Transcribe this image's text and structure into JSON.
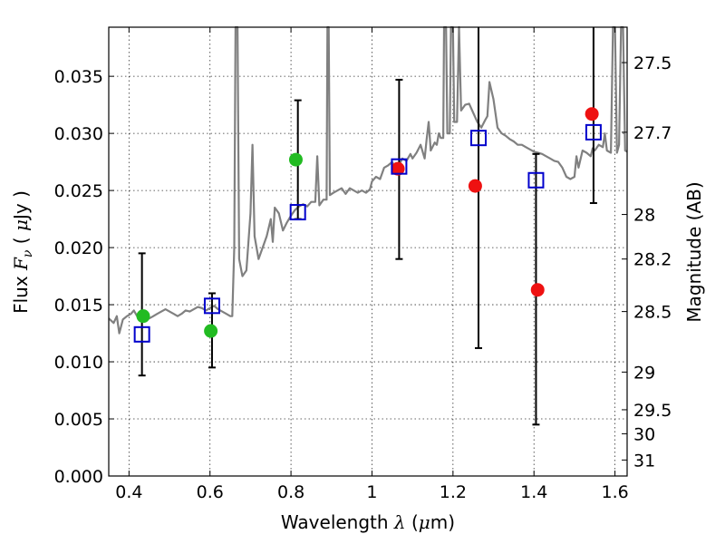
{
  "chart_data": {
    "type": "scatter",
    "title": "",
    "xlabel_parts": [
      "Wavelength  ",
      "λ",
      " (",
      "μ",
      "m)"
    ],
    "ylabel_parts": [
      "Flux  ",
      "F",
      "ν",
      "  ( ",
      "μ",
      "Jy )"
    ],
    "y2label": "Magnitude (AB)",
    "xlim": [
      0.35,
      1.63
    ],
    "ylim": [
      0.0,
      0.0393
    ],
    "x_ticks": [
      0.4,
      0.6,
      0.8,
      1.0,
      1.2,
      1.4,
      1.6
    ],
    "x_tick_labels": [
      "0.4",
      "0.6",
      "0.8",
      "1",
      "1.2",
      "1.4",
      "1.6"
    ],
    "y_ticks": [
      0.0,
      0.005,
      0.01,
      0.015,
      0.02,
      0.025,
      0.03,
      0.035
    ],
    "y_tick_labels": [
      "0.000",
      "0.005",
      "0.010",
      "0.015",
      "0.020",
      "0.025",
      "0.030",
      "0.035"
    ],
    "y2_ticks": [
      {
        "label": "27.5",
        "flux": 0.0362
      },
      {
        "label": "27.7",
        "flux": 0.0301
      },
      {
        "label": "28",
        "flux": 0.0229
      },
      {
        "label": "28.2",
        "flux": 0.019
      },
      {
        "label": "28.5",
        "flux": 0.0144
      },
      {
        "label": "29",
        "flux": 0.0091
      },
      {
        "label": "29.5",
        "flux": 0.0058
      },
      {
        "label": "30",
        "flux": 0.0037
      },
      {
        "label": "31",
        "flux": 0.0014
      }
    ],
    "grid": true,
    "colors": {
      "spectrum": "#808080",
      "green": "#22bb22",
      "red": "#ee1111",
      "blue": "#0000cc",
      "errorbar": "#000000"
    },
    "spectrum": [
      [
        0.35,
        0.0138
      ],
      [
        0.362,
        0.0134
      ],
      [
        0.37,
        0.014
      ],
      [
        0.376,
        0.0125
      ],
      [
        0.385,
        0.0137
      ],
      [
        0.395,
        0.014
      ],
      [
        0.405,
        0.0142
      ],
      [
        0.412,
        0.0145
      ],
      [
        0.42,
        0.014
      ],
      [
        0.43,
        0.0143
      ],
      [
        0.44,
        0.0144
      ],
      [
        0.45,
        0.0138
      ],
      [
        0.46,
        0.014
      ],
      [
        0.47,
        0.0142
      ],
      [
        0.48,
        0.0144
      ],
      [
        0.49,
        0.0146
      ],
      [
        0.5,
        0.0144
      ],
      [
        0.51,
        0.0142
      ],
      [
        0.52,
        0.014
      ],
      [
        0.53,
        0.0142
      ],
      [
        0.54,
        0.0145
      ],
      [
        0.55,
        0.0144
      ],
      [
        0.56,
        0.0146
      ],
      [
        0.57,
        0.0148
      ],
      [
        0.58,
        0.0147
      ],
      [
        0.59,
        0.0145
      ],
      [
        0.6,
        0.0147
      ],
      [
        0.61,
        0.0149
      ],
      [
        0.62,
        0.0146
      ],
      [
        0.63,
        0.0144
      ],
      [
        0.64,
        0.0142
      ],
      [
        0.65,
        0.014
      ],
      [
        0.655,
        0.014
      ],
      [
        0.66,
        0.02
      ],
      [
        0.663,
        0.0393
      ],
      [
        0.668,
        0.0393
      ],
      [
        0.672,
        0.019
      ],
      [
        0.68,
        0.0175
      ],
      [
        0.69,
        0.018
      ],
      [
        0.7,
        0.023
      ],
      [
        0.705,
        0.029
      ],
      [
        0.71,
        0.021
      ],
      [
        0.72,
        0.019
      ],
      [
        0.73,
        0.02
      ],
      [
        0.74,
        0.021
      ],
      [
        0.75,
        0.0225
      ],
      [
        0.755,
        0.0205
      ],
      [
        0.76,
        0.0235
      ],
      [
        0.77,
        0.023
      ],
      [
        0.78,
        0.0215
      ],
      [
        0.79,
        0.0222
      ],
      [
        0.8,
        0.0228
      ],
      [
        0.81,
        0.0233
      ],
      [
        0.82,
        0.0236
      ],
      [
        0.83,
        0.0238
      ],
      [
        0.84,
        0.0236
      ],
      [
        0.85,
        0.024
      ],
      [
        0.86,
        0.024
      ],
      [
        0.865,
        0.028
      ],
      [
        0.87,
        0.0237
      ],
      [
        0.88,
        0.0242
      ],
      [
        0.888,
        0.0242
      ],
      [
        0.89,
        0.0393
      ],
      [
        0.893,
        0.0393
      ],
      [
        0.896,
        0.0246
      ],
      [
        0.905,
        0.0248
      ],
      [
        0.915,
        0.025
      ],
      [
        0.925,
        0.0252
      ],
      [
        0.935,
        0.0247
      ],
      [
        0.945,
        0.0252
      ],
      [
        0.955,
        0.025
      ],
      [
        0.965,
        0.0248
      ],
      [
        0.975,
        0.025
      ],
      [
        0.985,
        0.0248
      ],
      [
        0.995,
        0.0251
      ],
      [
        1.0,
        0.0258
      ],
      [
        1.01,
        0.0262
      ],
      [
        1.02,
        0.026
      ],
      [
        1.03,
        0.027
      ],
      [
        1.04,
        0.0272
      ],
      [
        1.05,
        0.0275
      ],
      [
        1.06,
        0.0268
      ],
      [
        1.075,
        0.0278
      ],
      [
        1.085,
        0.0276
      ],
      [
        1.095,
        0.0282
      ],
      [
        1.1,
        0.0278
      ],
      [
        1.11,
        0.0283
      ],
      [
        1.12,
        0.029
      ],
      [
        1.13,
        0.0278
      ],
      [
        1.135,
        0.0295
      ],
      [
        1.14,
        0.031
      ],
      [
        1.145,
        0.0285
      ],
      [
        1.155,
        0.0292
      ],
      [
        1.16,
        0.029
      ],
      [
        1.165,
        0.03
      ],
      [
        1.17,
        0.0296
      ],
      [
        1.176,
        0.0296
      ],
      [
        1.178,
        0.0393
      ],
      [
        1.183,
        0.0393
      ],
      [
        1.186,
        0.03
      ],
      [
        1.192,
        0.03
      ],
      [
        1.195,
        0.0393
      ],
      [
        1.2,
        0.0393
      ],
      [
        1.203,
        0.031
      ],
      [
        1.21,
        0.031
      ],
      [
        1.215,
        0.0393
      ],
      [
        1.22,
        0.032
      ],
      [
        1.23,
        0.0325
      ],
      [
        1.24,
        0.0326
      ],
      [
        1.25,
        0.0318
      ],
      [
        1.26,
        0.031
      ],
      [
        1.27,
        0.0305
      ],
      [
        1.28,
        0.0312
      ],
      [
        1.285,
        0.0315
      ],
      [
        1.29,
        0.0345
      ],
      [
        1.3,
        0.033
      ],
      [
        1.31,
        0.0305
      ],
      [
        1.32,
        0.03
      ],
      [
        1.33,
        0.0298
      ],
      [
        1.34,
        0.0295
      ],
      [
        1.35,
        0.0293
      ],
      [
        1.36,
        0.029
      ],
      [
        1.37,
        0.029
      ],
      [
        1.38,
        0.0288
      ],
      [
        1.39,
        0.0286
      ],
      [
        1.4,
        0.0284
      ],
      [
        1.41,
        0.0283
      ],
      [
        1.42,
        0.0282
      ],
      [
        1.43,
        0.028
      ],
      [
        1.44,
        0.0278
      ],
      [
        1.45,
        0.0276
      ],
      [
        1.46,
        0.0275
      ],
      [
        1.47,
        0.027
      ],
      [
        1.48,
        0.0262
      ],
      [
        1.49,
        0.026
      ],
      [
        1.5,
        0.0262
      ],
      [
        1.505,
        0.028
      ],
      [
        1.51,
        0.027
      ],
      [
        1.52,
        0.0285
      ],
      [
        1.53,
        0.0283
      ],
      [
        1.54,
        0.028
      ],
      [
        1.545,
        0.0287
      ],
      [
        1.55,
        0.0285
      ],
      [
        1.56,
        0.029
      ],
      [
        1.57,
        0.0288
      ],
      [
        1.575,
        0.03
      ],
      [
        1.58,
        0.0285
      ],
      [
        1.59,
        0.0283
      ],
      [
        1.595,
        0.0393
      ],
      [
        1.6,
        0.0393
      ],
      [
        1.605,
        0.0283
      ],
      [
        1.61,
        0.029
      ],
      [
        1.615,
        0.0393
      ],
      [
        1.62,
        0.0393
      ],
      [
        1.625,
        0.0285
      ],
      [
        1.63,
        0.0284
      ]
    ],
    "error_bars": [
      {
        "x": 0.432,
        "low": 0.0088,
        "high": 0.0195
      },
      {
        "x": 0.605,
        "low": 0.0095,
        "high": 0.016
      },
      {
        "x": 0.817,
        "low": 0.0225,
        "high": 0.0329
      },
      {
        "x": 1.067,
        "low": 0.019,
        "high": 0.0347
      },
      {
        "x": 1.263,
        "low": 0.0112,
        "high": 0.0393
      },
      {
        "x": 1.405,
        "low": 0.0045,
        "high": 0.0282
      },
      {
        "x": 1.547,
        "low": 0.0239,
        "high": 0.0393
      }
    ],
    "green_points": [
      {
        "x": 0.435,
        "y": 0.014
      },
      {
        "x": 0.602,
        "y": 0.0127
      },
      {
        "x": 0.812,
        "y": 0.0277
      }
    ],
    "red_points": [
      {
        "x": 1.064,
        "y": 0.0269
      },
      {
        "x": 1.255,
        "y": 0.0254
      },
      {
        "x": 1.409,
        "y": 0.0163
      },
      {
        "x": 1.543,
        "y": 0.0317
      }
    ],
    "blue_squares": [
      {
        "x": 0.432,
        "y": 0.0124
      },
      {
        "x": 0.605,
        "y": 0.0149
      },
      {
        "x": 0.817,
        "y": 0.0231
      },
      {
        "x": 1.067,
        "y": 0.0271
      },
      {
        "x": 1.263,
        "y": 0.0296
      },
      {
        "x": 1.405,
        "y": 0.0259
      },
      {
        "x": 1.547,
        "y": 0.0301
      }
    ]
  }
}
